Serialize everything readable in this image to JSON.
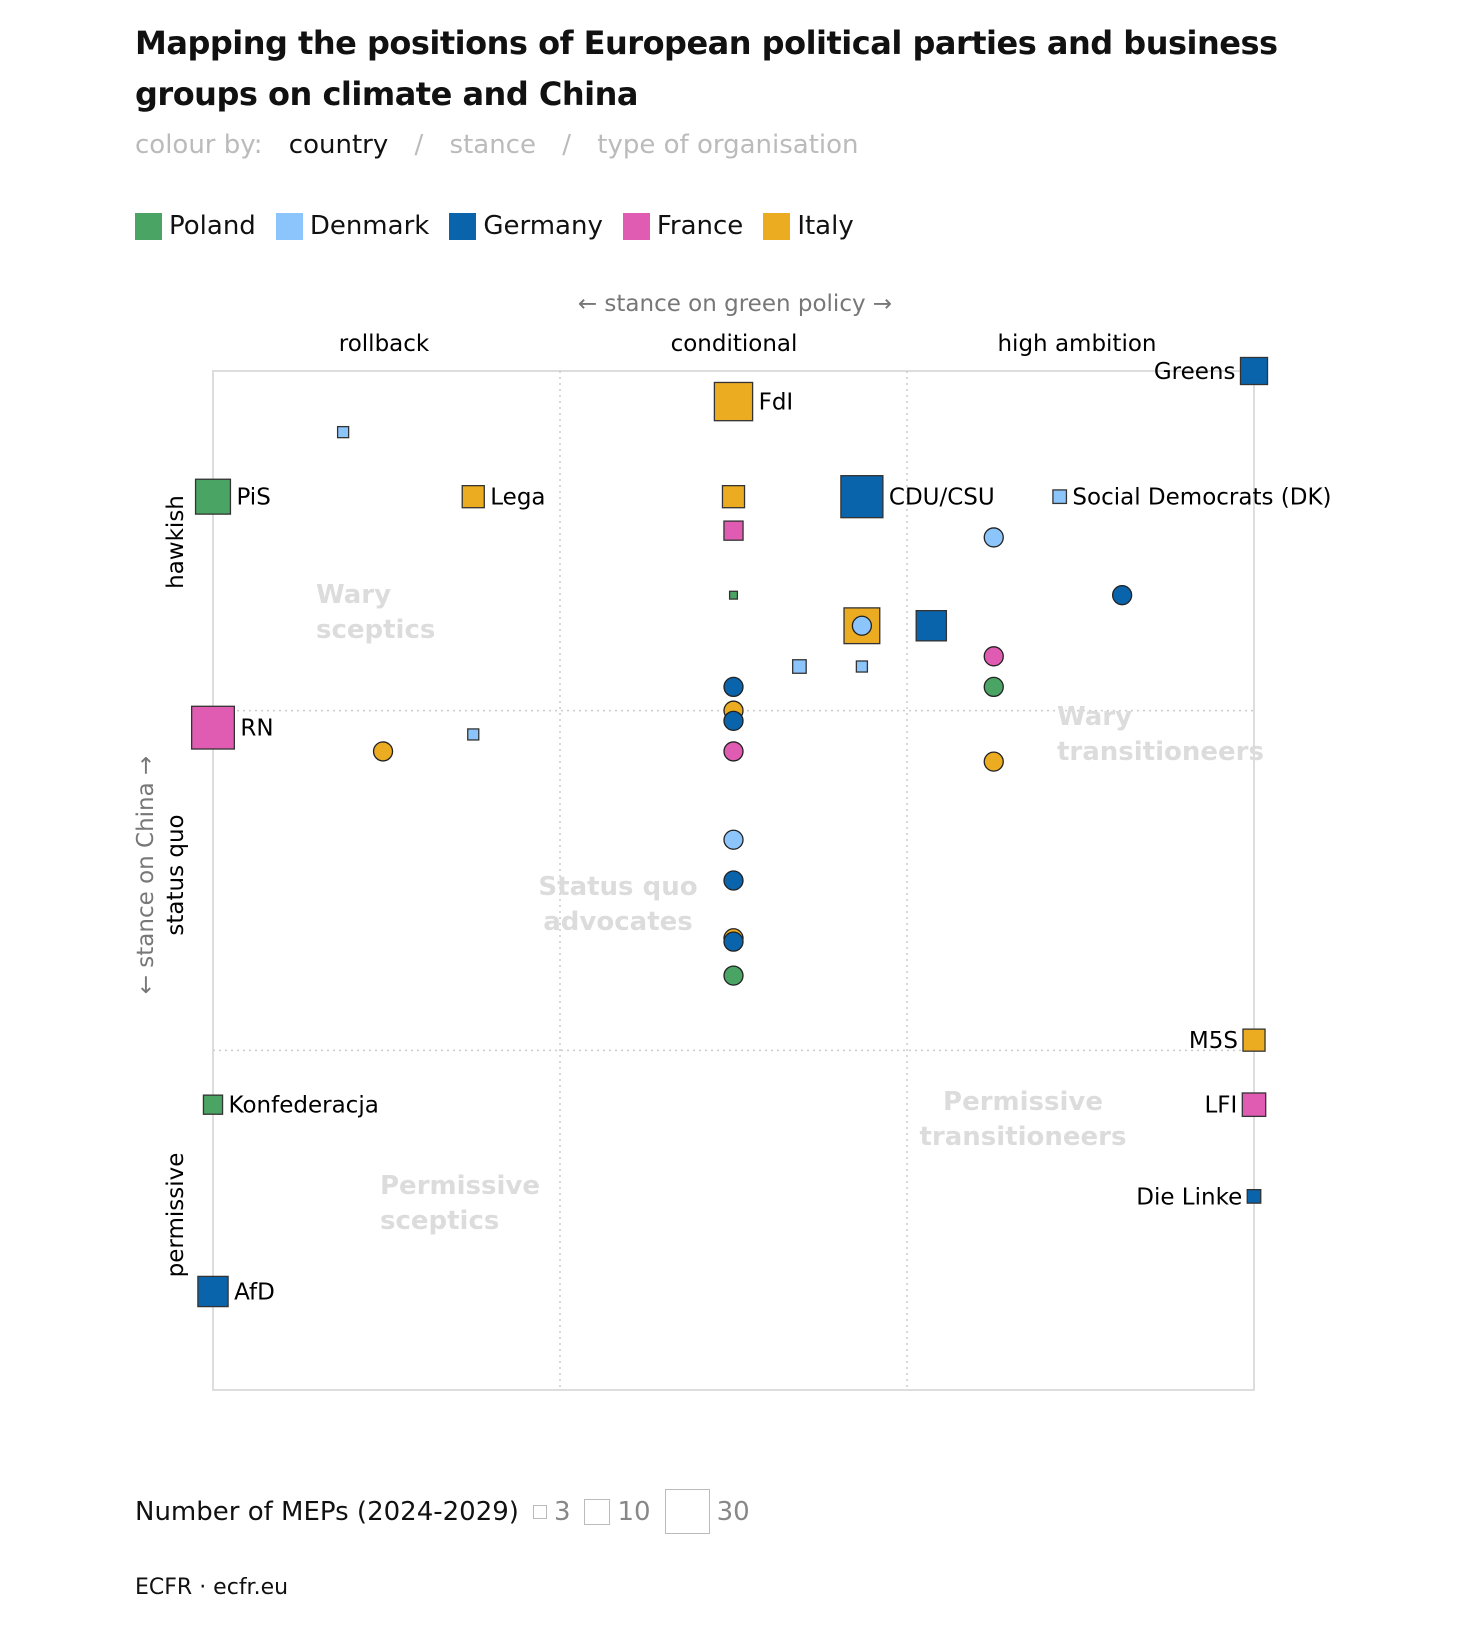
{
  "title": "Mapping the positions of European political parties and business groups on climate and China",
  "colour_by": {
    "label": "colour by:",
    "options": [
      "country",
      "stance",
      "type of organisation"
    ],
    "selected": "country",
    "separator": "/"
  },
  "legend": [
    {
      "name": "Poland",
      "color": "#4aa564"
    },
    {
      "name": "Denmark",
      "color": "#8cc5fb"
    },
    {
      "name": "Germany",
      "color": "#0a64ac"
    },
    {
      "name": "France",
      "color": "#e05cb2"
    },
    {
      "name": "Italy",
      "color": "#ecac22"
    }
  ],
  "size_legend": {
    "label": "Number of MEPs (2024-2029)",
    "values": [
      "3",
      "10",
      "30"
    ]
  },
  "footer": "ECFR · ecfr.eu",
  "chart_data": {
    "type": "scatter",
    "xlabel": "← stance on green policy →",
    "ylabel": "← stance on China →",
    "x_categories": [
      "rollback",
      "conditional",
      "high ambition"
    ],
    "y_categories": [
      "hawkish",
      "status quo",
      "permissive"
    ],
    "xlim": [
      0,
      3
    ],
    "ylim": [
      0,
      3
    ],
    "grid": true,
    "quadrant_labels": [
      {
        "text": [
          "Wary",
          "sceptics"
        ]
      },
      {
        "text": [
          "Wary",
          "transitioneers"
        ]
      },
      {
        "text": [
          "Status quo",
          "advocates"
        ]
      },
      {
        "text": [
          "Permissive",
          "transitioneers"
        ]
      },
      {
        "text": [
          "Permissive",
          "sceptics"
        ]
      }
    ],
    "points": [
      {
        "label": "RN",
        "country": "France",
        "shape": "square",
        "meps": 30,
        "x": 0,
        "y": 1.95,
        "label_side": "right"
      },
      {
        "label": "CDU/CSU",
        "country": "Germany",
        "shape": "square",
        "meps": 29,
        "x": 1.87,
        "y": 2.63,
        "label_side": "right"
      },
      {
        "label": "FdI",
        "country": "Italy",
        "shape": "square",
        "meps": 24,
        "x": 1.5,
        "y": 2.91,
        "label_side": "right"
      },
      {
        "label": "",
        "country": "Italy",
        "shape": "square",
        "meps": 21,
        "x": 1.87,
        "y": 2.25
      },
      {
        "label": "PiS",
        "country": "Poland",
        "shape": "square",
        "meps": 20,
        "x": 0,
        "y": 2.63,
        "label_side": "right"
      },
      {
        "label": "AfD",
        "country": "Germany",
        "shape": "square",
        "meps": 15,
        "x": 0,
        "y": 0.29,
        "label_side": "right"
      },
      {
        "label": "",
        "country": "Germany",
        "shape": "square",
        "meps": 15,
        "x": 2.07,
        "y": 2.25
      },
      {
        "label": "Greens",
        "country": "Germany",
        "shape": "square",
        "meps": 12,
        "x": 3,
        "y": 3,
        "label_side": "left"
      },
      {
        "label": "LFI",
        "country": "France",
        "shape": "square",
        "meps": 9,
        "x": 3,
        "y": 0.84,
        "label_side": "left"
      },
      {
        "label": "Lega",
        "country": "Italy",
        "shape": "square",
        "meps": 8,
        "x": 0.75,
        "y": 2.63,
        "label_side": "right"
      },
      {
        "label": "",
        "country": "Italy",
        "shape": "square",
        "meps": 8,
        "x": 1.5,
        "y": 2.63
      },
      {
        "label": "M5S",
        "country": "Italy",
        "shape": "square",
        "meps": 8,
        "x": 3,
        "y": 1.03,
        "label_side": "left"
      },
      {
        "label": "",
        "country": "France",
        "shape": "square",
        "meps": 6,
        "x": 1.5,
        "y": 2.53
      },
      {
        "label": "Konfederacja",
        "country": "Poland",
        "shape": "square",
        "meps": 6,
        "x": 0,
        "y": 0.84,
        "label_side": "right"
      },
      {
        "label": "Social Democrats (DK)",
        "country": "Denmark",
        "shape": "square",
        "meps": 3,
        "x": 2.44,
        "y": 2.63,
        "label_side": "right"
      },
      {
        "label": "",
        "country": "Denmark",
        "shape": "square",
        "meps": 3,
        "x": 1.69,
        "y": 2.13
      },
      {
        "label": "Die Linke",
        "country": "Germany",
        "shape": "square",
        "meps": 3,
        "x": 3,
        "y": 0.57,
        "label_side": "left"
      },
      {
        "label": "",
        "country": "Denmark",
        "shape": "square",
        "meps": 2,
        "x": 0.375,
        "y": 2.82
      },
      {
        "label": "",
        "country": "Denmark",
        "shape": "square",
        "meps": 2,
        "x": 1.87,
        "y": 2.13
      },
      {
        "label": "",
        "country": "Denmark",
        "shape": "square",
        "meps": 2,
        "x": 0.75,
        "y": 1.93
      },
      {
        "label": "",
        "country": "Poland",
        "shape": "square",
        "meps": 1,
        "x": 1.5,
        "y": 2.34
      },
      {
        "label": "",
        "country": "Denmark",
        "shape": "circle",
        "x": 2.25,
        "y": 2.51
      },
      {
        "label": "",
        "country": "Germany",
        "shape": "circle",
        "x": 2.62,
        "y": 2.34
      },
      {
        "label": "",
        "country": "Denmark",
        "shape": "circle",
        "x": 1.87,
        "y": 2.25
      },
      {
        "label": "",
        "country": "France",
        "shape": "circle",
        "x": 2.25,
        "y": 2.16
      },
      {
        "label": "",
        "country": "Poland",
        "shape": "circle",
        "x": 2.25,
        "y": 2.07
      },
      {
        "label": "",
        "country": "Italy",
        "shape": "circle",
        "x": 2.25,
        "y": 1.85
      },
      {
        "label": "",
        "country": "Germany",
        "shape": "circle",
        "x": 1.5,
        "y": 2.07
      },
      {
        "label": "",
        "country": "Italy",
        "shape": "circle",
        "x": 1.5,
        "y": 2.0
      },
      {
        "label": "",
        "country": "Germany",
        "shape": "circle",
        "x": 1.5,
        "y": 1.97
      },
      {
        "label": "",
        "country": "France",
        "shape": "circle",
        "x": 1.5,
        "y": 1.88
      },
      {
        "label": "",
        "country": "Italy",
        "shape": "circle",
        "x": 0.49,
        "y": 1.88
      },
      {
        "label": "",
        "country": "Denmark",
        "shape": "circle",
        "x": 1.5,
        "y": 1.62
      },
      {
        "label": "",
        "country": "Germany",
        "shape": "circle",
        "x": 1.5,
        "y": 1.5
      },
      {
        "label": "",
        "country": "Italy",
        "shape": "circle",
        "x": 1.5,
        "y": 1.33
      },
      {
        "label": "",
        "country": "Germany",
        "shape": "circle",
        "x": 1.5,
        "y": 1.32
      },
      {
        "label": "",
        "country": "Poland",
        "shape": "circle",
        "x": 1.5,
        "y": 1.22
      }
    ]
  }
}
